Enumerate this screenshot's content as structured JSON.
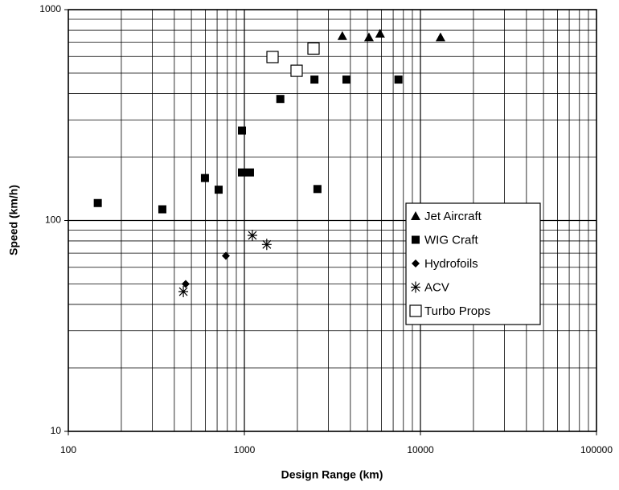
{
  "chart_data": {
    "type": "scatter",
    "xlabel": "Design Range (km)",
    "ylabel": "Speed (km/h)",
    "xscale": "log",
    "yscale": "log",
    "xlim": [
      100,
      100000
    ],
    "ylim": [
      10,
      1000
    ],
    "xticks": [
      100,
      1000,
      10000,
      100000
    ],
    "yticks": [
      10,
      100,
      1000
    ],
    "xgrid": [
      200,
      300,
      400,
      500,
      600,
      700,
      800,
      900,
      2000,
      3000,
      4000,
      5000,
      6000,
      7000,
      8000,
      9000,
      20000,
      30000,
      40000,
      50000,
      60000,
      70000,
      80000,
      90000
    ],
    "ygrid": [
      20,
      30,
      40,
      50,
      60,
      70,
      80,
      90,
      200,
      300,
      400,
      500,
      600,
      700,
      800,
      900
    ],
    "grid": true,
    "legend": "lower right",
    "series": [
      {
        "name": "Jet Aircraft",
        "marker": "triangle",
        "color": "#000000",
        "x": [
          3600,
          5100,
          5900,
          13000
        ],
        "values": [
          750,
          740,
          770,
          740
        ]
      },
      {
        "name": "WIG Craft",
        "marker": "square",
        "color": "#000000",
        "x": [
          147,
          342,
          597,
          714,
          969,
          969,
          1076,
          1600,
          2500,
          2600,
          3800,
          7500
        ],
        "values": [
          121,
          113,
          159,
          140,
          267,
          169,
          169,
          377,
          466,
          141,
          466,
          466
        ]
      },
      {
        "name": "Hydrofoils",
        "marker": "diamond",
        "color": "#000000",
        "x": [
          464,
          785
        ],
        "values": [
          50,
          68
        ]
      },
      {
        "name": "ACV",
        "marker": "asterisk",
        "color": "#000000",
        "x": [
          450,
          1110,
          1340
        ],
        "values": [
          46,
          85,
          77
        ]
      },
      {
        "name": "Turbo Props",
        "marker": "open-square",
        "color": "#000000",
        "x": [
          1445,
          1980,
          2470
        ],
        "values": [
          596,
          513,
          654
        ]
      }
    ]
  }
}
